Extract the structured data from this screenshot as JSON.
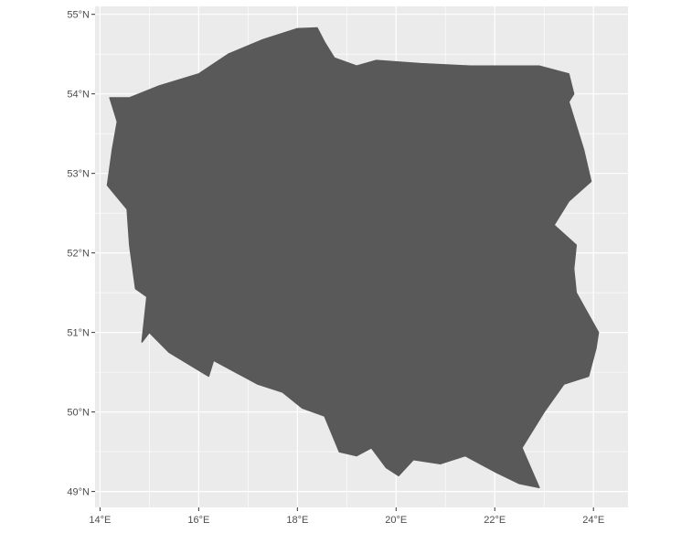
{
  "map": {
    "type": "choropleth-outline",
    "region": "Poland",
    "fill_color": "#595959",
    "panel_background": "#ebebeb",
    "grid_color": "#ffffff",
    "x_axis": {
      "unit": "degrees east",
      "range": [
        13.9,
        24.7
      ],
      "ticks": [
        {
          "value": 14,
          "label": "14°E"
        },
        {
          "value": 16,
          "label": "16°E"
        },
        {
          "value": 18,
          "label": "18°E"
        },
        {
          "value": 20,
          "label": "20°E"
        },
        {
          "value": 22,
          "label": "22°E"
        },
        {
          "value": 24,
          "label": "24°E"
        }
      ]
    },
    "y_axis": {
      "unit": "degrees north",
      "range": [
        48.8,
        55.1
      ],
      "ticks": [
        {
          "value": 49,
          "label": "49°N"
        },
        {
          "value": 50,
          "label": "50°N"
        },
        {
          "value": 51,
          "label": "51°N"
        },
        {
          "value": 52,
          "label": "52°N"
        },
        {
          "value": 53,
          "label": "53°N"
        },
        {
          "value": 54,
          "label": "54°N"
        },
        {
          "value": 55,
          "label": "55°N"
        }
      ]
    },
    "outline": [
      [
        14.2,
        53.95
      ],
      [
        14.6,
        53.95
      ],
      [
        15.2,
        54.1
      ],
      [
        16.0,
        54.25
      ],
      [
        16.6,
        54.5
      ],
      [
        17.3,
        54.68
      ],
      [
        18.0,
        54.82
      ],
      [
        18.4,
        54.83
      ],
      [
        18.55,
        54.65
      ],
      [
        18.75,
        54.45
      ],
      [
        19.2,
        54.35
      ],
      [
        19.6,
        54.42
      ],
      [
        20.5,
        54.38
      ],
      [
        21.5,
        54.35
      ],
      [
        22.2,
        54.35
      ],
      [
        22.9,
        54.35
      ],
      [
        23.5,
        54.25
      ],
      [
        23.6,
        54.0
      ],
      [
        23.5,
        53.9
      ],
      [
        23.8,
        53.3
      ],
      [
        23.95,
        52.9
      ],
      [
        23.5,
        52.65
      ],
      [
        23.2,
        52.35
      ],
      [
        23.65,
        52.1
      ],
      [
        23.6,
        51.8
      ],
      [
        23.65,
        51.5
      ],
      [
        24.1,
        51.0
      ],
      [
        24.05,
        50.8
      ],
      [
        23.9,
        50.45
      ],
      [
        23.4,
        50.35
      ],
      [
        23.0,
        50.0
      ],
      [
        22.55,
        49.55
      ],
      [
        22.9,
        49.05
      ],
      [
        22.5,
        49.1
      ],
      [
        22.0,
        49.25
      ],
      [
        21.4,
        49.45
      ],
      [
        20.9,
        49.35
      ],
      [
        20.35,
        49.4
      ],
      [
        20.05,
        49.2
      ],
      [
        19.8,
        49.3
      ],
      [
        19.5,
        49.55
      ],
      [
        19.2,
        49.45
      ],
      [
        18.85,
        49.5
      ],
      [
        18.55,
        49.95
      ],
      [
        18.1,
        50.05
      ],
      [
        17.7,
        50.25
      ],
      [
        17.2,
        50.35
      ],
      [
        16.9,
        50.45
      ],
      [
        16.3,
        50.65
      ],
      [
        16.2,
        50.45
      ],
      [
        15.4,
        50.75
      ],
      [
        15.0,
        51.0
      ],
      [
        14.85,
        50.88
      ],
      [
        14.95,
        51.45
      ],
      [
        14.72,
        51.55
      ],
      [
        14.6,
        52.1
      ],
      [
        14.55,
        52.55
      ],
      [
        14.15,
        52.85
      ],
      [
        14.25,
        53.3
      ],
      [
        14.35,
        53.65
      ],
      [
        14.2,
        53.95
      ]
    ]
  }
}
